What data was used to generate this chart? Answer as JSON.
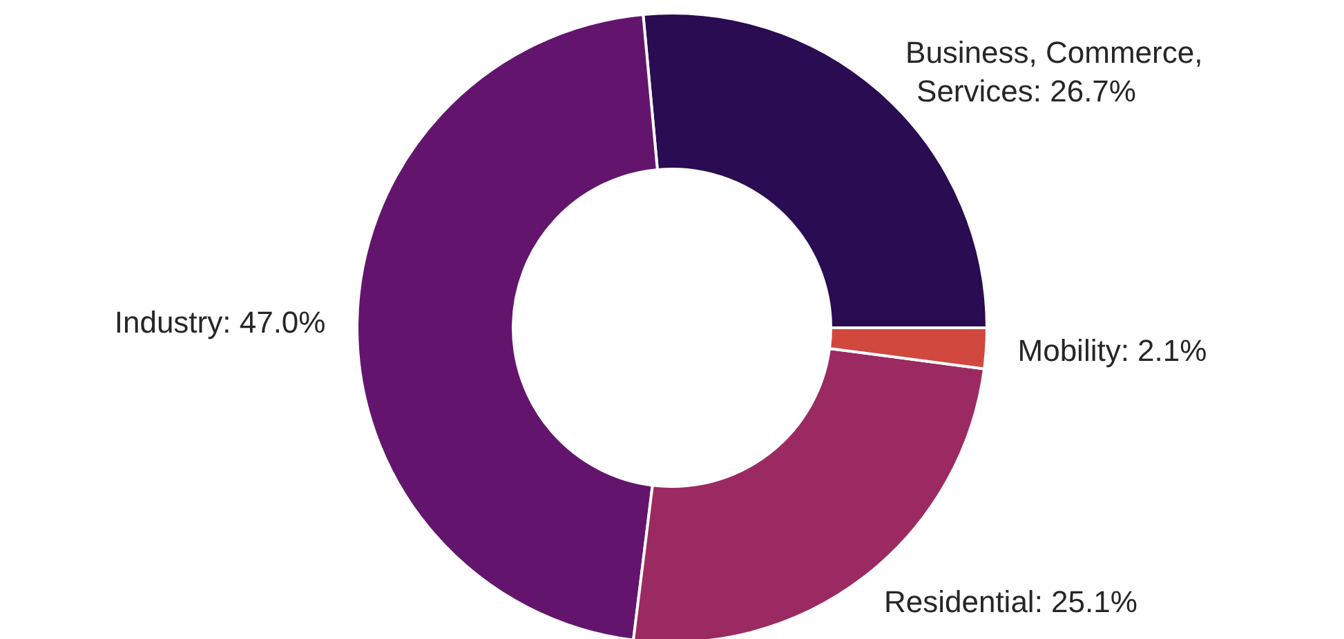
{
  "chart_data": {
    "type": "donut",
    "categories": [
      "Business, Commerce, Services",
      "Industry",
      "Residential",
      "Mobility"
    ],
    "values": [
      26.7,
      47.0,
      25.1,
      2.1
    ],
    "value_labels": [
      "26.7%",
      "47.0%",
      "25.1%",
      "2.1%"
    ],
    "colors": [
      "#2a0c52",
      "#63156d",
      "#9c2a62",
      "#d1483f"
    ],
    "data_labels": true,
    "legend": false
  }
}
